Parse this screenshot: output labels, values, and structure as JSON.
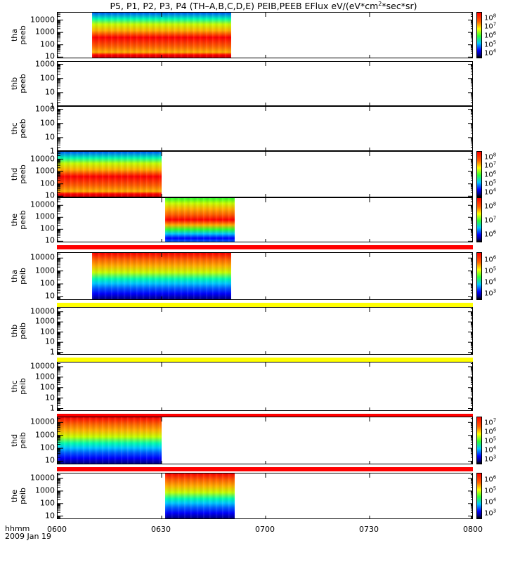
{
  "title_prefix": "P5, P1, P2, P3, P4 (TH–A,B,C,D,E) PEIB,PEEB EFlux eV/(eV*cm",
  "title_sup": "2",
  "title_suffix": "*sec*sr)",
  "x_axis": {
    "label": "hhmm",
    "date": "2009 Jan 19"
  },
  "colors": {
    "spectrum": [
      "#000080",
      "#0000ff",
      "#0060ff",
      "#00c8ff",
      "#00ffb0",
      "#30ff30",
      "#c8ff00",
      "#ffff00",
      "#ffb000",
      "#ff6000",
      "#ff0000"
    ],
    "red_band": "#ff0000",
    "yellow_band": "#ffff00"
  },
  "chart_data": {
    "type": "heatmap",
    "x_range": [
      "0600",
      "0800"
    ],
    "x_ticks": [
      "0600",
      "0630",
      "0700",
      "0730",
      "0800"
    ],
    "y_scale": "log",
    "panels": [
      {
        "probe": "tha",
        "instr": "peeb",
        "yticks": [
          "10",
          "100",
          "1000",
          "10000"
        ],
        "ylim": [
          7,
          40000
        ],
        "data_span": [
          "0610",
          "0650"
        ],
        "colorbar": {
          "exps": [
            "4",
            "5",
            "6",
            "7",
            "8"
          ],
          "base": "10"
        },
        "band_below": ""
      },
      {
        "probe": "thb",
        "instr": "peeb",
        "yticks": [
          "1",
          "10",
          "100",
          "1000"
        ],
        "ylim": [
          1,
          1500
        ],
        "data_span": null,
        "colorbar": null,
        "band_below": ""
      },
      {
        "probe": "thc",
        "instr": "peeb",
        "yticks": [
          "1",
          "10",
          "100",
          "1000"
        ],
        "ylim": [
          1,
          1500
        ],
        "data_span": null,
        "colorbar": null,
        "band_below": ""
      },
      {
        "probe": "thd",
        "instr": "peeb",
        "yticks": [
          "10",
          "100",
          "1000",
          "10000"
        ],
        "ylim": [
          7,
          40000
        ],
        "data_span": [
          "0600",
          "0630"
        ],
        "colorbar": {
          "exps": [
            "4",
            "5",
            "6",
            "7",
            "8"
          ],
          "base": "10"
        },
        "band_below": ""
      },
      {
        "probe": "the",
        "instr": "peeb",
        "yticks": [
          "10",
          "100",
          "1000",
          "10000"
        ],
        "ylim": [
          7,
          40000
        ],
        "data_span": [
          "0631",
          "0651"
        ],
        "colorbar": {
          "exps": [
            "6",
            "7",
            "8"
          ],
          "base": "10"
        },
        "band_below": "red"
      },
      {
        "probe": "tha",
        "instr": "peib",
        "yticks": [
          "10",
          "100",
          "1000",
          "10000"
        ],
        "ylim": [
          5,
          25000
        ],
        "data_span": [
          "0610",
          "0650"
        ],
        "colorbar": {
          "exps": [
            "3",
            "4",
            "5",
            "6"
          ],
          "base": "10"
        },
        "band_below": "yellow"
      },
      {
        "probe": "thb",
        "instr": "peib",
        "yticks": [
          "1",
          "10",
          "100",
          "1000",
          "10000"
        ],
        "ylim": [
          0.5,
          25000
        ],
        "data_span": null,
        "colorbar": null,
        "band_below": "yellow"
      },
      {
        "probe": "thc",
        "instr": "peib",
        "yticks": [
          "1",
          "10",
          "100",
          "1000",
          "10000"
        ],
        "ylim": [
          0.5,
          25000
        ],
        "data_span": null,
        "colorbar": null,
        "band_below": "red"
      },
      {
        "probe": "thd",
        "instr": "peib",
        "yticks": [
          "10",
          "100",
          "1000",
          "10000"
        ],
        "ylim": [
          5,
          25000
        ],
        "data_span": [
          "0600",
          "0630"
        ],
        "colorbar": {
          "exps": [
            "3",
            "4",
            "5",
            "6",
            "7"
          ],
          "base": "10"
        },
        "band_below": "red"
      },
      {
        "probe": "the",
        "instr": "peib",
        "yticks": [
          "10",
          "100",
          "1000",
          "10000"
        ],
        "ylim": [
          5,
          25000
        ],
        "data_span": [
          "0631",
          "0651"
        ],
        "colorbar": {
          "exps": [
            "3",
            "4",
            "5",
            "6"
          ],
          "base": "10"
        },
        "band_below": ""
      }
    ]
  }
}
